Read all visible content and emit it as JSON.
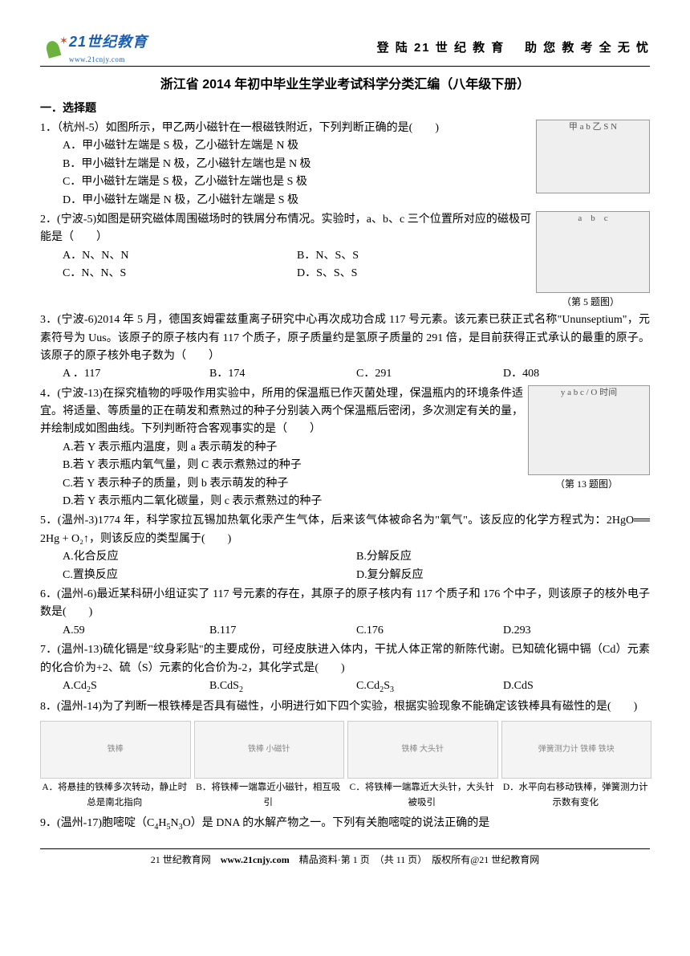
{
  "header": {
    "logo_title": "21世纪教育",
    "logo_url_text": "www.21cnjy.com",
    "slogan_left": "登 陆 21 世 纪 教 育",
    "slogan_right": "助 您 教 考 全 无 忧"
  },
  "title": "浙江省 2014 年初中毕业生学业考试科学分类汇编（八年级下册）",
  "section_h": "一．选择题",
  "q1": {
    "stem": "1．（杭州-5）如图所示，甲乙两小磁针在一根磁铁附近，下列判断正确的是(　　)",
    "a": "A．甲小磁针左端是 S 极，乙小磁针左端是 N 极",
    "b": "B．甲小磁针左端是 N 极，乙小磁针左端也是 N 极",
    "c": "C．甲小磁针左端是 S 极，乙小磁针左端也是 S 极",
    "d": "D．甲小磁针左端是 N 极，乙小磁针左端是 S 极",
    "fig_label": "甲 a b 乙 S N"
  },
  "q2": {
    "stem": "2．(宁波-5)如图是研究磁体周围磁场时的铁屑分布情况。实验时，a、b、c 三个位置所对应的磁极可能是（　　）",
    "a": "A．N、N、N",
    "b": "B．N、S、S",
    "c": "C．N、N、S",
    "d": "D．S、S、S",
    "fig_caption": "（第 5 题图）"
  },
  "q3": {
    "stem": "3．(宁波-6)2014 年 5 月，德国亥姆霍兹重离子研究中心再次成功合成 117 号元素。该元素已获正式名称\"Ununseptium\"，元素符号为 Uus。该原子的原子核内有 117 个质子，原子质量约是氢原子质量的 291 倍，是目前获得正式承认的最重的原子。该原子的原子核外电子数为（　　）",
    "a": "A ．117",
    "b": "B．174",
    "c": "C．291",
    "d": "D．408"
  },
  "q4": {
    "stem": "4．(宁波-13)在探究植物的呼吸作用实验中，所用的保温瓶已作灭菌处理，保温瓶内的环境条件适宜。将适量、等质量的正在萌发和煮熟过的种子分别装入两个保温瓶后密闭，多次测定有关的量，并绘制成如图曲线。下列判断符合客观事实的是（　　）",
    "a": "A.若 Y 表示瓶内温度，则 a 表示萌发的种子",
    "b": "B.若 Y 表示瓶内氧气量，则 C 表示煮熟过的种子",
    "c": "C.若 Y 表示种子的质量，则 b 表示萌发的种子",
    "d": "D.若 Y 表示瓶内二氧化碳量，则 c 表示煮熟过的种子",
    "fig_caption": "（第 13 题图）"
  },
  "q5": {
    "stem": "5．(温州-3)1774 年，科学家拉瓦锡加热氧化汞产生气体，后来该气体被命名为\"氧气\"。该反应的化学方程式为：2HgO══ 2Hg + O₂↑，则该反应的类型属于(　　)",
    "a": "A.化合反应",
    "b": "B.分解反应",
    "c": "C.置换反应",
    "d": "D.复分解反应"
  },
  "q6": {
    "stem": "6．(温州-6)最近某科研小组证实了 117 号元素的存在，其原子的原子核内有 117 个质子和 176 个中子，则该原子的核外电子数是(　　)",
    "a": "A.59",
    "b": "B.117",
    "c": "C.176",
    "d": "D.293"
  },
  "q7": {
    "stem": "7．(温州-13)硫化镉是\"纹身彩贴\"的主要成份，可经皮肤进入体内，干扰人体正常的新陈代谢。已知硫化镉中镉（Cd）元素的化合价为+2、硫（S）元素的化合价为-2，其化学式是(　　)",
    "a_pre": "A.Cd",
    "a_sub1": "2",
    "a_post": "S",
    "b_pre": "B.CdS",
    "b_sub1": "2",
    "c_pre": "C.Cd",
    "c_sub1": "2",
    "c_mid": "S",
    "c_sub2": "3",
    "d": "D.CdS"
  },
  "q8": {
    "stem": "8．(温州-14)为了判断一根铁棒是否具有磁性，小明进行如下四个实验，根据实验现象不能确定该铁棒具有磁性的是(　　)",
    "a": "A．将悬挂的铁棒多次转动，静止时总是南北指向",
    "b": "B．将铁棒一端靠近小磁针，相互吸引",
    "c": "C．将铁棒一端靠近大头针，大头针被吸引",
    "d": "D．水平向右移动铁棒，弹簧测力计示数有变化",
    "box_a": "铁棒",
    "box_b": "铁棒 小磁针",
    "box_c": "铁棒 大头针",
    "box_d": "弹簧测力计 铁棒 铁块"
  },
  "q9": {
    "stem_pre": "9．(温州-17)胞嘧啶（C",
    "sub1": "4",
    "mid1": "H",
    "sub2": "5",
    "mid2": "N",
    "sub3": "3",
    "stem_post": "O）是 DNA 的水解产物之一。下列有关胞嘧啶的说法正确的是"
  },
  "footer": {
    "site": "21 世纪教育网",
    "url": "www.21cnjy.com",
    "middle": "精品资料·第 1 页　（共 11 页）　版权所有@21 世纪教育网"
  }
}
